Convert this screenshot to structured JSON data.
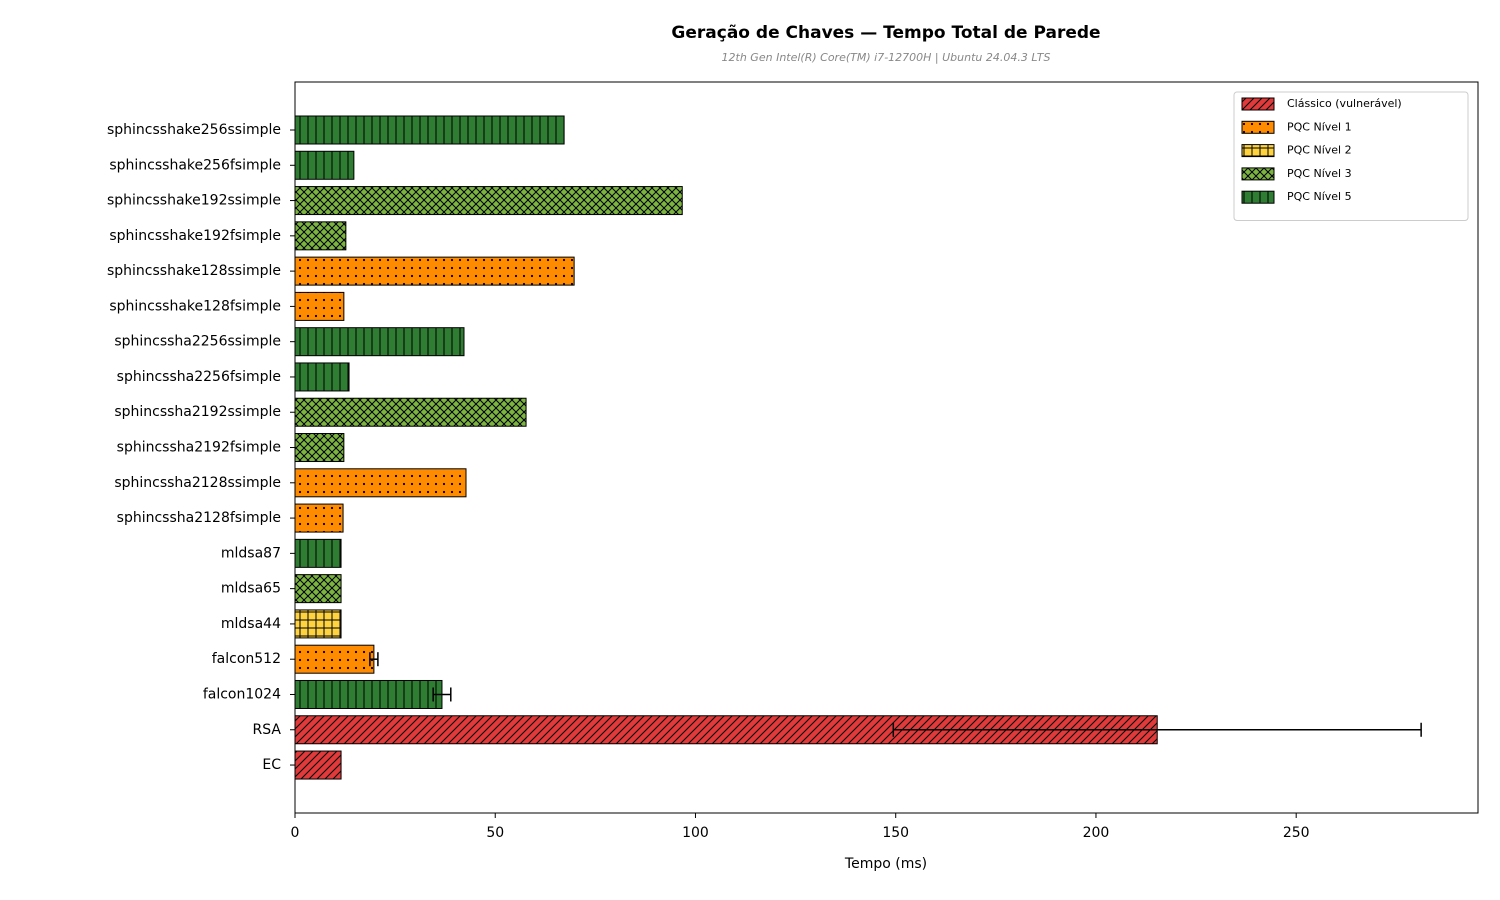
{
  "chart_data": {
    "type": "barh",
    "title": "Geração de Chaves — Tempo Total de Parede",
    "subtitle": "12th Gen Intel(R) Core(TM) i7-12700H | Ubuntu 24.04.3 LTS",
    "xlabel": "Tempo (ms)",
    "categories": [
      "sphincsshake256ssimple",
      "sphincsshake256fsimple",
      "sphincsshake192ssimple",
      "sphincsshake192fsimple",
      "sphincsshake128ssimple",
      "sphincsshake128fsimple",
      "sphincssha2256ssimple",
      "sphincssha2256fsimple",
      "sphincssha2192ssimple",
      "sphincssha2192fsimple",
      "sphincssha2128ssimple",
      "sphincssha2128fsimple",
      "mldsa87",
      "mldsa65",
      "mldsa44",
      "falcon512",
      "falcon1024",
      "RSA",
      "EC"
    ],
    "series": [
      {
        "name": "Clássico (vulnerável)",
        "color": "#e03a3a",
        "hatch": "/",
        "values": [
          null,
          null,
          null,
          null,
          null,
          null,
          null,
          null,
          null,
          null,
          null,
          null,
          null,
          null,
          null,
          null,
          null,
          215.3,
          11.5
        ],
        "errors": [
          null,
          null,
          null,
          null,
          null,
          null,
          null,
          null,
          null,
          null,
          null,
          null,
          null,
          null,
          null,
          null,
          null,
          65.9,
          null
        ]
      },
      {
        "name": "PQC Nível 1",
        "color": "#ff8c00",
        "hatch": ".",
        "values": [
          null,
          null,
          null,
          null,
          69.7,
          12.2,
          null,
          null,
          null,
          null,
          42.7,
          12.0,
          null,
          null,
          null,
          19.7,
          null,
          null,
          null
        ],
        "errors": [
          null,
          null,
          null,
          null,
          null,
          null,
          null,
          null,
          null,
          null,
          null,
          null,
          null,
          null,
          null,
          1.0,
          null,
          null,
          null
        ]
      },
      {
        "name": "PQC Nível 2",
        "color": "#ffd23f",
        "hatch": "+",
        "values": [
          null,
          null,
          null,
          null,
          null,
          null,
          null,
          null,
          null,
          null,
          null,
          null,
          null,
          null,
          11.5,
          null,
          null,
          null,
          null
        ],
        "errors": [
          null,
          null,
          null,
          null,
          null,
          null,
          null,
          null,
          null,
          null,
          null,
          null,
          null,
          null,
          null,
          null,
          null,
          null,
          null
        ]
      },
      {
        "name": "PQC Nível 3",
        "color": "#7cb342",
        "hatch": "x",
        "values": [
          null,
          null,
          96.7,
          12.7,
          null,
          null,
          null,
          null,
          57.7,
          12.2,
          null,
          null,
          null,
          11.5,
          null,
          null,
          null,
          null,
          null
        ],
        "errors": [
          null,
          null,
          null,
          null,
          null,
          null,
          null,
          null,
          null,
          null,
          null,
          null,
          null,
          null,
          null,
          null,
          null,
          null,
          null
        ]
      },
      {
        "name": "PQC Nível 5",
        "color": "#2e7d32",
        "hatch": "|",
        "values": [
          67.2,
          14.7,
          null,
          null,
          null,
          null,
          42.2,
          13.5,
          null,
          null,
          null,
          null,
          11.5,
          null,
          null,
          null,
          36.7,
          null,
          null
        ],
        "errors": [
          null,
          null,
          null,
          null,
          null,
          null,
          null,
          null,
          null,
          null,
          null,
          null,
          null,
          null,
          null,
          null,
          2.2,
          null,
          null
        ]
      }
    ],
    "xlim": [
      0,
      295.4
    ],
    "xticks": [
      0,
      50,
      100,
      150,
      200,
      250
    ],
    "legend": "upper right"
  }
}
